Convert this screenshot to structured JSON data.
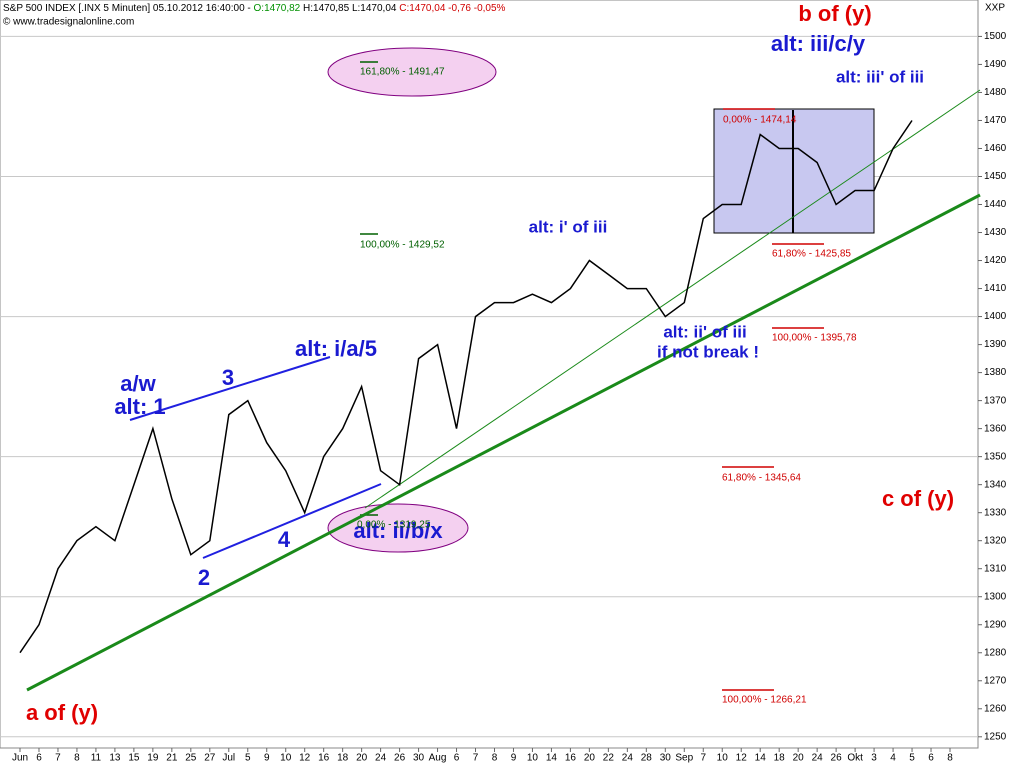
{
  "header": {
    "instrument": "S&P 500 INDEX [.INX  5 Minuten] 05.10.2012 16:40:00 -",
    "open": "O:1470,82",
    "high": "H:1470,85",
    "low": "L:1470,04",
    "close": "C:1470,04 -0,76 -0,05%",
    "source": "© www.tradesignalonline.com"
  },
  "chart_data": {
    "type": "line",
    "y_label": "XXP",
    "categories": [
      "Jun",
      "6",
      "7",
      "8",
      "11",
      "13",
      "15",
      "19",
      "21",
      "25",
      "27",
      "Jul",
      "5",
      "9",
      "10",
      "12",
      "16",
      "18",
      "20",
      "24",
      "26",
      "30",
      "Aug",
      "6",
      "7",
      "8",
      "9",
      "10",
      "14",
      "16",
      "20",
      "22",
      "24",
      "28",
      "30",
      "Sep",
      "7",
      "10",
      "12",
      "14",
      "18",
      "20",
      "24",
      "26",
      "Okt",
      "3",
      "4",
      "5",
      "6",
      "8"
    ],
    "series": [
      {
        "name": "S&P 500 INDEX",
        "color": "#000000",
        "values": [
          1280,
          1290,
          1310,
          1320,
          1325,
          1320,
          1340,
          1360,
          1335,
          1315,
          1320,
          1365,
          1370,
          1355,
          1345,
          1330,
          1350,
          1360,
          1375,
          1345,
          1340,
          1385,
          1390,
          1360,
          1400,
          1405,
          1405,
          1408,
          1405,
          1410,
          1420,
          1415,
          1410,
          1410,
          1400,
          1405,
          1435,
          1440,
          1440,
          1465,
          1460,
          1460,
          1455,
          1440,
          1445,
          1445,
          1460,
          1470,
          null,
          null
        ]
      }
    ],
    "ylim": [
      1246,
      1513
    ],
    "yticks": [
      1250,
      1260,
      1270,
      1280,
      1290,
      1300,
      1310,
      1320,
      1330,
      1340,
      1350,
      1360,
      1370,
      1380,
      1390,
      1400,
      1410,
      1420,
      1430,
      1440,
      1450,
      1460,
      1470,
      1480,
      1490,
      1500
    ],
    "grid": true,
    "annotations": [
      {
        "text": "b of (y)",
        "color": "#e00000"
      },
      {
        "text": "alt: iii/c/y",
        "color": "#1a1ad0"
      },
      {
        "text": "alt: iii' of iii",
        "color": "#1a1ad0"
      },
      {
        "text": "alt: i' of iii",
        "color": "#1a1ad0"
      },
      {
        "text": "alt: ii' of iii",
        "color": "#1a1ad0"
      },
      {
        "text": "if not break !",
        "color": "#1a1ad0"
      },
      {
        "text": "alt: i/a/5",
        "color": "#1a1ad0"
      },
      {
        "text": "a/w",
        "color": "#1a1ad0"
      },
      {
        "text": "alt: 1",
        "color": "#1a1ad0"
      },
      {
        "text": "3",
        "color": "#1a1ad0"
      },
      {
        "text": "4",
        "color": "#1a1ad0"
      },
      {
        "text": "2",
        "color": "#1a1ad0"
      },
      {
        "text": "alt: ii/b/x",
        "color": "#1a1ad0"
      },
      {
        "text": "c of (y)",
        "color": "#e00000"
      },
      {
        "text": "a of (y)",
        "color": "#e00000"
      }
    ],
    "fib_labels": [
      {
        "text": "0,00% - 1474,14",
        "color": "#d00000"
      },
      {
        "text": "61,80% - 1425,85",
        "color": "#d00000"
      },
      {
        "text": "100,00% - 1395,78",
        "color": "#d00000"
      },
      {
        "text": "61,80% - 1345,64",
        "color": "#d00000"
      },
      {
        "text": "100,00% - 1266,21",
        "color": "#d00000"
      },
      {
        "text": "161,80% - 1491,47",
        "color": "#006000"
      },
      {
        "text": "100,00% - 1429,52",
        "color": "#006000"
      },
      {
        "text": "0,00% - 1319,25",
        "color": "#006000"
      }
    ]
  }
}
